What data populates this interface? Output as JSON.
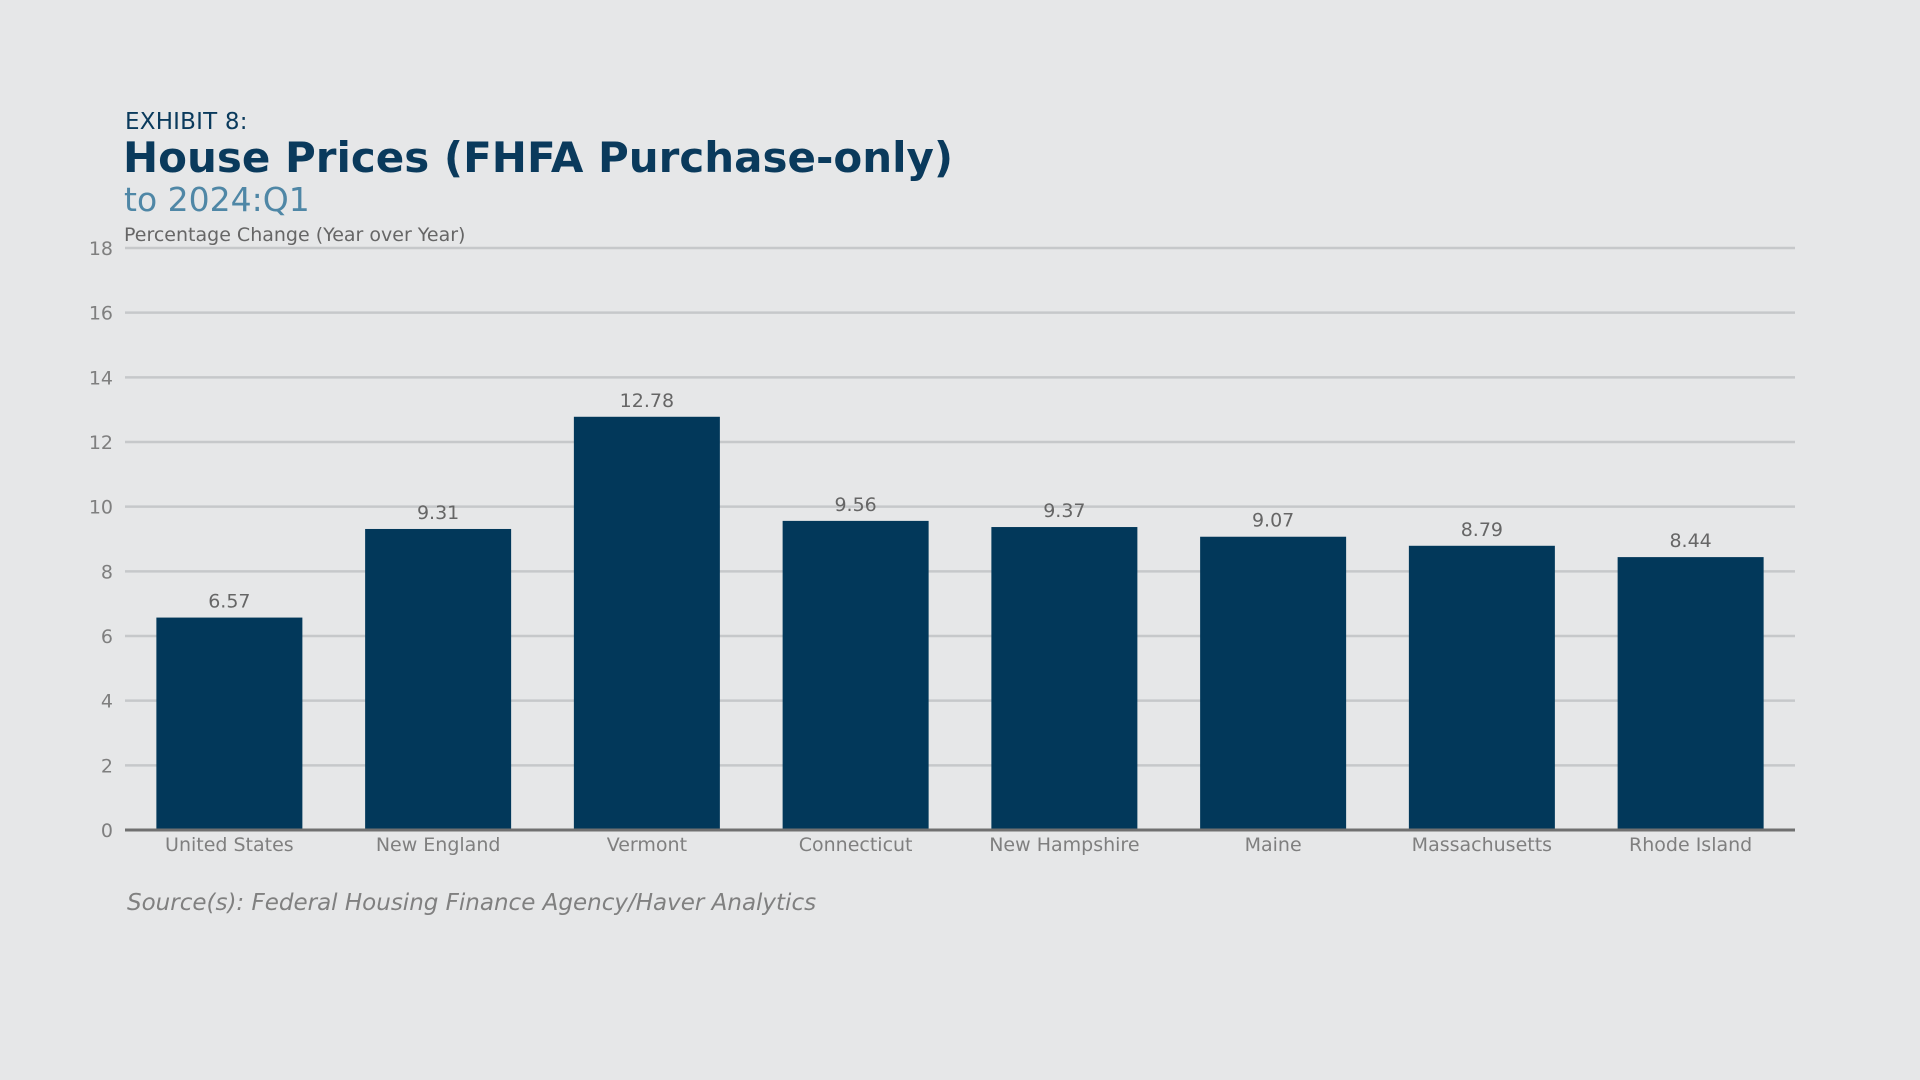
{
  "header": {
    "exhibit": "EXHIBIT 8:",
    "title": "House Prices (FHFA Purchase-only)",
    "subtitle": "to 2024:Q1",
    "ylabel": "Percentage Change (Year over Year)"
  },
  "footer": {
    "source": "Source(s): Federal Housing Finance Agency/Haver Analytics"
  },
  "colors": {
    "bar": "#02385A",
    "grid": "#C6C8CA",
    "axis": "#707070",
    "tick_text": "#7F7F7F",
    "label_text": "#666666"
  },
  "chart_data": {
    "type": "bar",
    "title": "House Prices (FHFA Purchase-only)",
    "subtitle": "to 2024:Q1",
    "xlabel": "",
    "ylabel": "Percentage Change (Year over Year)",
    "categories": [
      "United States",
      "New England",
      "Vermont",
      "Connecticut",
      "New Hampshire",
      "Maine",
      "Massachusetts",
      "Rhode Island"
    ],
    "values": [
      6.57,
      9.31,
      12.78,
      9.56,
      9.37,
      9.07,
      8.79,
      8.44
    ],
    "value_labels": [
      "6.57",
      "9.31",
      "12.78",
      "9.56",
      "9.37",
      "9.07",
      "8.79",
      "8.44"
    ],
    "ylim": [
      0,
      18
    ],
    "yticks": [
      0,
      2,
      4,
      6,
      8,
      10,
      12,
      14,
      16,
      18
    ],
    "grid": true,
    "legend": "none"
  }
}
